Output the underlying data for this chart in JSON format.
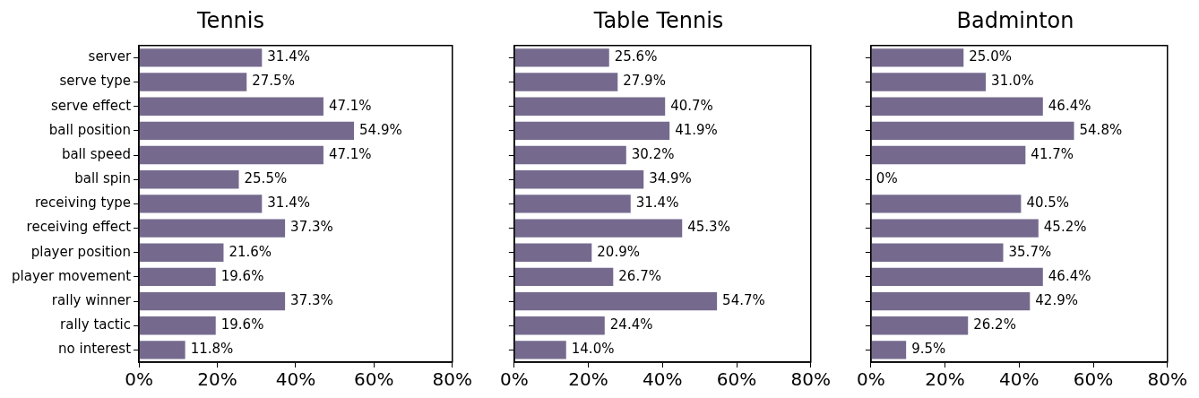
{
  "chart_data": [
    {
      "type": "bar",
      "orientation": "horizontal",
      "title": "Tennis",
      "categories": [
        "server",
        "serve type",
        "serve effect",
        "ball position",
        "ball speed",
        "ball spin",
        "receiving type",
        "receiving effect",
        "player position",
        "player movement",
        "rally winner",
        "rally tactic",
        "no interest"
      ],
      "values": [
        31.4,
        27.5,
        47.1,
        54.9,
        47.1,
        25.5,
        31.4,
        37.3,
        21.6,
        19.6,
        37.3,
        19.6,
        11.8
      ],
      "value_labels": [
        "31.4%",
        "27.5%",
        "47.1%",
        "54.9%",
        "47.1%",
        "25.5%",
        "31.4%",
        "37.3%",
        "21.6%",
        "19.6%",
        "37.3%",
        "19.6%",
        "11.8%"
      ],
      "color": "#756a8e",
      "xlim": [
        0,
        80
      ],
      "xticks": [
        {
          "value": 0,
          "label": "0%"
        },
        {
          "value": 20,
          "label": "20%"
        },
        {
          "value": 40,
          "label": "40%"
        },
        {
          "value": 60,
          "label": "60%"
        },
        {
          "value": 80,
          "label": "80%"
        }
      ],
      "grid": false,
      "legend": false
    },
    {
      "type": "bar",
      "orientation": "horizontal",
      "title": "Table Tennis",
      "categories": [
        null,
        null,
        null,
        null,
        null,
        null,
        null,
        null,
        null,
        null,
        null,
        null,
        null
      ],
      "values": [
        25.6,
        27.9,
        40.7,
        41.9,
        30.2,
        34.9,
        31.4,
        45.3,
        20.9,
        26.7,
        54.7,
        24.4,
        14.0
      ],
      "value_labels": [
        "25.6%",
        "27.9%",
        "40.7%",
        "41.9%",
        "30.2%",
        "34.9%",
        "31.4%",
        "45.3%",
        "20.9%",
        "26.7%",
        "54.7%",
        "24.4%",
        "14.0%"
      ],
      "color": "#756a8e",
      "xlim": [
        0,
        80
      ],
      "xticks": [
        {
          "value": 0,
          "label": "0%"
        },
        {
          "value": 20,
          "label": "20%"
        },
        {
          "value": 40,
          "label": "40%"
        },
        {
          "value": 60,
          "label": "60%"
        },
        {
          "value": 80,
          "label": "80%"
        }
      ],
      "grid": false,
      "legend": false,
      "tick_labels": "x"
    },
    {
      "type": "bar",
      "orientation": "horizontal",
      "title": "Badminton",
      "categories": [
        null,
        null,
        null,
        null,
        null,
        null,
        null,
        null,
        null,
        null,
        null,
        null,
        null
      ],
      "values": [
        25.0,
        31.0,
        46.4,
        54.8,
        41.7,
        0,
        40.5,
        45.2,
        35.7,
        46.4,
        42.9,
        26.2,
        9.5
      ],
      "value_labels": [
        "25.0%",
        "31.0%",
        "46.4%",
        "54.8%",
        "41.7%",
        "0%",
        "40.5%",
        "45.2%",
        "35.7%",
        "46.4%",
        "42.9%",
        "26.2%",
        "9.5%"
      ],
      "color": "#756a8e",
      "xlim": [
        0,
        80
      ],
      "xticks": [
        {
          "value": 0,
          "label": "0%"
        },
        {
          "value": 20,
          "label": "20%"
        },
        {
          "value": 40,
          "label": "40%"
        },
        {
          "value": 60,
          "label": "60%"
        },
        {
          "value": 80,
          "label": "80%"
        }
      ],
      "grid": false,
      "legend": false,
      "tick_labels": "x"
    }
  ]
}
